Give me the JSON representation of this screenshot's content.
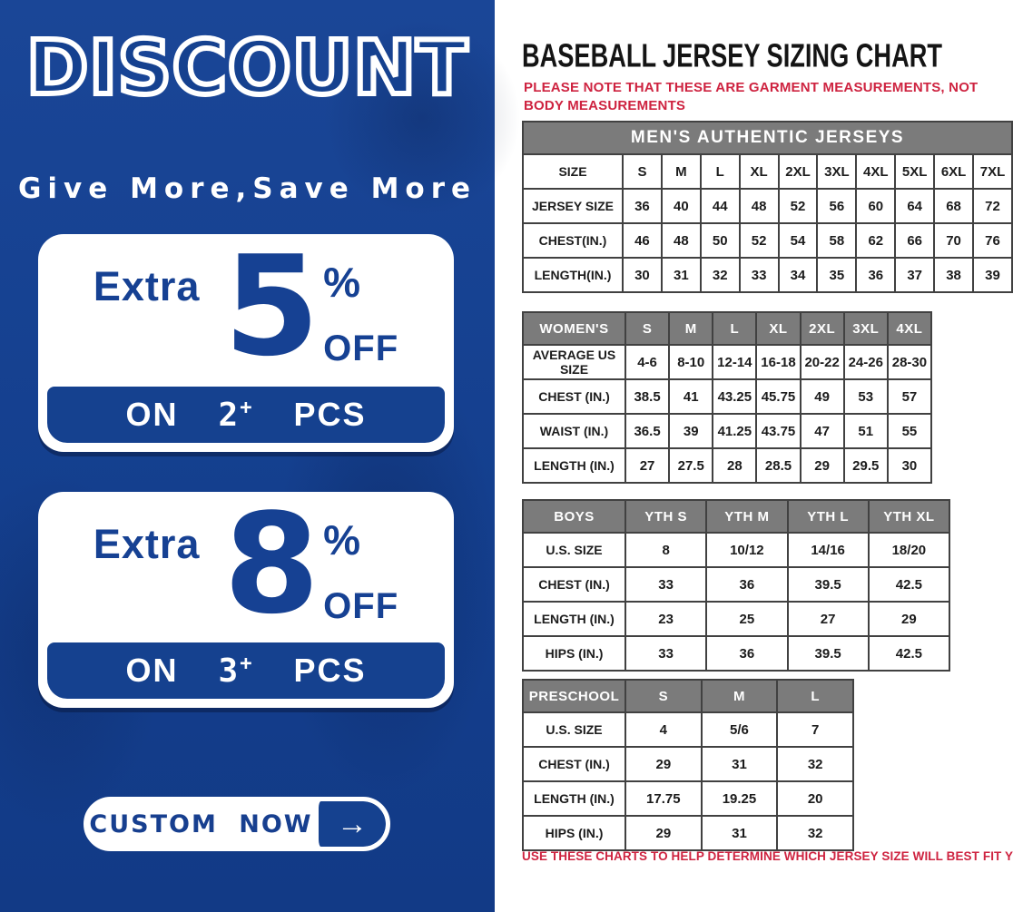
{
  "promo": {
    "headline": "DISCOUNT",
    "subheadline": "Give More,Save More",
    "offers": [
      {
        "prefix": "Extra",
        "percent": "5",
        "percent_sign": "%",
        "off_label": "OFF",
        "on_label": "ON",
        "qty": "2",
        "qty_plus": "+",
        "pcs_label": "PCS"
      },
      {
        "prefix": "Extra",
        "percent": "8",
        "percent_sign": "%",
        "off_label": "OFF",
        "on_label": "ON",
        "qty": "3",
        "qty_plus": "+",
        "pcs_label": "PCS"
      }
    ],
    "cta": {
      "label": "CUSTOM NOW",
      "arrow": "→"
    }
  },
  "sizing": {
    "title": "BASEBALL JERSEY SIZING CHART",
    "note_top": "PLEASE NOTE THAT THESE ARE GARMENT MEASUREMENTS, NOT BODY MEASUREMENTS",
    "note_bottom": "USE THESE CHARTS TO HELP DETERMINE WHICH JERSEY SIZE WILL BEST FIT YOU.",
    "tables": [
      {
        "id": "mens",
        "banner": "MEN'S AUTHENTIC JERSEYS",
        "rows": [
          [
            "SIZE",
            "S",
            "M",
            "L",
            "XL",
            "2XL",
            "3XL",
            "4XL",
            "5XL",
            "6XL",
            "7XL"
          ],
          [
            "JERSEY SIZE",
            "36",
            "40",
            "44",
            "48",
            "52",
            "56",
            "60",
            "64",
            "68",
            "72"
          ],
          [
            "CHEST(IN.)",
            "46",
            "48",
            "50",
            "52",
            "54",
            "58",
            "62",
            "66",
            "70",
            "76"
          ],
          [
            "LENGTH(IN.)",
            "30",
            "31",
            "32",
            "33",
            "34",
            "35",
            "36",
            "37",
            "38",
            "39"
          ]
        ]
      },
      {
        "id": "womens",
        "header_cells": [
          "WOMEN'S",
          "S",
          "M",
          "L",
          "XL",
          "2XL",
          "3XL",
          "4XL"
        ],
        "rows": [
          [
            "AVERAGE US SIZE",
            "4-6",
            "8-10",
            "12-14",
            "16-18",
            "20-22",
            "24-26",
            "28-30"
          ],
          [
            "CHEST (IN.)",
            "38.5",
            "41",
            "43.25",
            "45.75",
            "49",
            "53",
            "57"
          ],
          [
            "WAIST (IN.)",
            "36.5",
            "39",
            "41.25",
            "43.75",
            "47",
            "51",
            "55"
          ],
          [
            "LENGTH (IN.)",
            "27",
            "27.5",
            "28",
            "28.5",
            "29",
            "29.5",
            "30"
          ]
        ]
      },
      {
        "id": "boys",
        "header_cells": [
          "BOYS",
          "YTH S",
          "YTH M",
          "YTH L",
          "YTH XL"
        ],
        "rows": [
          [
            "U.S. SIZE",
            "8",
            "10/12",
            "14/16",
            "18/20"
          ],
          [
            "CHEST (IN.)",
            "33",
            "36",
            "39.5",
            "42.5"
          ],
          [
            "LENGTH (IN.)",
            "23",
            "25",
            "27",
            "29"
          ],
          [
            "HIPS (IN.)",
            "33",
            "36",
            "39.5",
            "42.5"
          ]
        ]
      },
      {
        "id": "preschool",
        "header_cells": [
          "PRESCHOOL",
          "S",
          "M",
          "L"
        ],
        "rows": [
          [
            "U.S. SIZE",
            "4",
            "5/6",
            "7"
          ],
          [
            "CHEST (IN.)",
            "29",
            "31",
            "32"
          ],
          [
            "LENGTH (IN.)",
            "17.75",
            "19.25",
            "20"
          ],
          [
            "HIPS (IN.)",
            "29",
            "31",
            "32"
          ]
        ]
      }
    ]
  },
  "colors": {
    "brand_blue": "#15418f",
    "accent_red": "#ce2340",
    "header_gray": "#7b7b7b",
    "table_border": "#414141"
  }
}
